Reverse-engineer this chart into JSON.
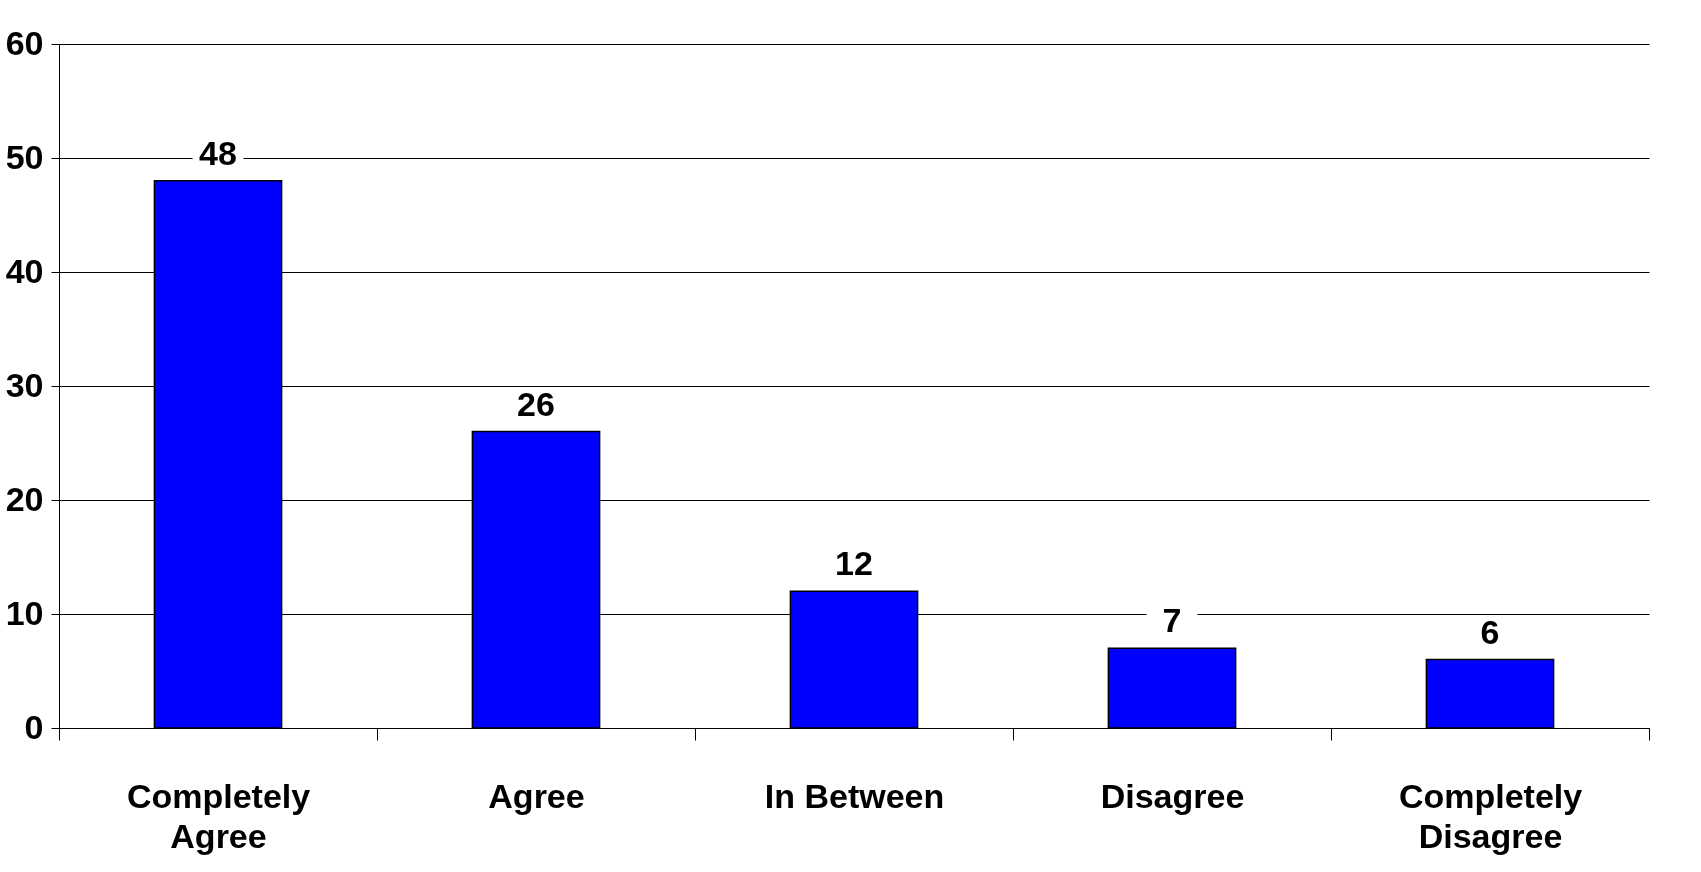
{
  "chart_data": {
    "type": "bar",
    "categories": [
      "Completely Agree",
      "Agree",
      "In Between",
      "Disagree",
      "Completely Disagree"
    ],
    "values": [
      48,
      26,
      12,
      7,
      6
    ],
    "color": "#0000ff",
    "ylim": [
      0,
      60
    ],
    "yticks": [
      0,
      10,
      20,
      30,
      40,
      50,
      60
    ],
    "grid": "y",
    "data_labels": true
  }
}
